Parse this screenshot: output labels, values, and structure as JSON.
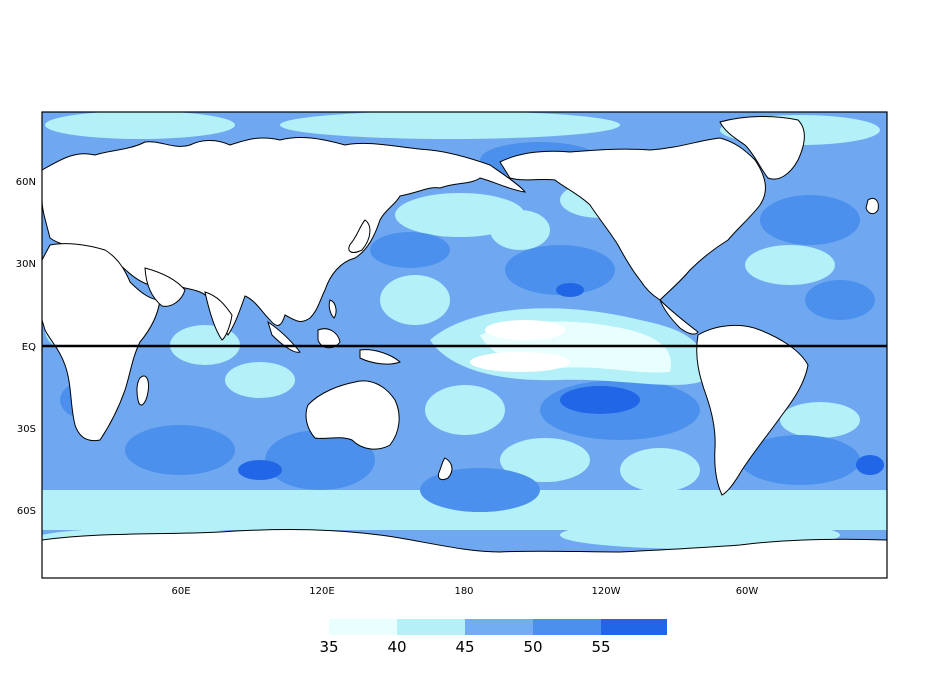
{
  "map": {
    "lat_ticks": [
      "60N",
      "30N",
      "EQ",
      "30S",
      "60S"
    ],
    "lon_ticks": [
      "60E",
      "120E",
      "180",
      "120W",
      "60W"
    ],
    "lon_range": [
      0,
      360
    ],
    "lat_range": [
      -90,
      90
    ],
    "equator_line": true,
    "land_color": "#ffffff",
    "ocean_base_color": "#6fa8f0"
  },
  "colorbar": {
    "bins": [
      {
        "color": "#e8feff"
      },
      {
        "color": "#b3f0f8"
      },
      {
        "color": "#72acf2"
      },
      {
        "color": "#4a90ec"
      },
      {
        "color": "#2066e6"
      }
    ],
    "labels": [
      "35",
      "40",
      "45",
      "50",
      "55"
    ]
  }
}
